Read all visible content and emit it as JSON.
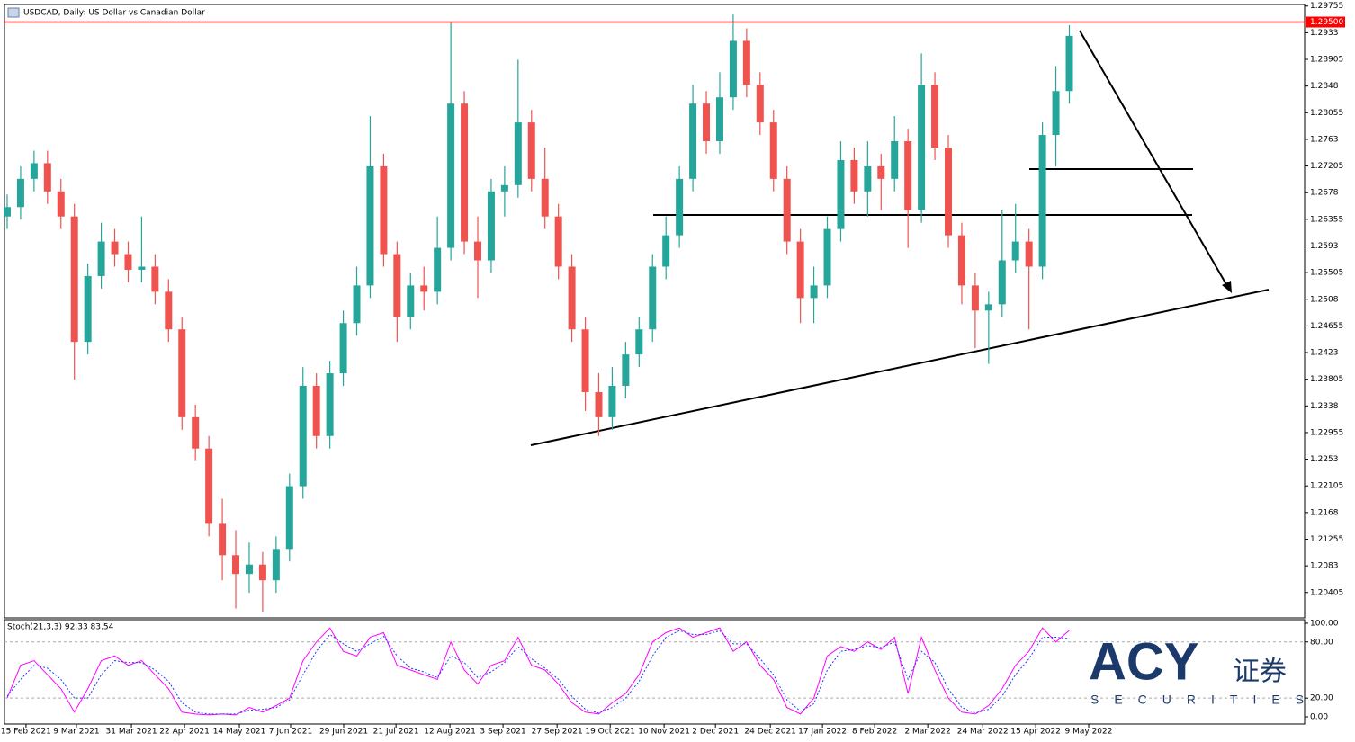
{
  "chart_data": [
    {
      "type": "candlestick",
      "title": "USDCAD, Daily:  US Dollar vs Canadian Dollar",
      "up_color": "#26a69a",
      "down_color": "#ef5350",
      "xlim": [
        -0.2,
        96.5
      ],
      "xticks": [
        {
          "value": 1.4,
          "label": "15 Feb 2021"
        },
        {
          "value": 5.15,
          "label": "9 Mar 2021"
        },
        {
          "value": 9.24,
          "label": "31 Mar 2021"
        },
        {
          "value": 13.19,
          "label": "22 Apr 2021"
        },
        {
          "value": 17.27,
          "label": "14 May 2021"
        },
        {
          "value": 21.08,
          "label": "7 Jun 2021"
        },
        {
          "value": 25.03,
          "label": "29 Jun 2021"
        },
        {
          "value": 28.92,
          "label": "21 Jul 2021"
        },
        {
          "value": 32.93,
          "label": "12 Aug 2021"
        },
        {
          "value": 36.88,
          "label": "3 Sep 2021"
        },
        {
          "value": 40.9,
          "label": "27 Sep 2021"
        },
        {
          "value": 44.85,
          "label": "19 Oct 2021"
        },
        {
          "value": 48.86,
          "label": "10 Nov 2021"
        },
        {
          "value": 52.68,
          "label": "2 Dec 2021"
        },
        {
          "value": 56.76,
          "label": "24 Dec 2021"
        },
        {
          "value": 60.64,
          "label": "17 Jan 2022"
        },
        {
          "value": 64.52,
          "label": "8 Feb 2022"
        },
        {
          "value": 68.47,
          "label": "2 Mar 2022"
        },
        {
          "value": 72.56,
          "label": "24 Mar 2022"
        },
        {
          "value": 76.5,
          "label": "15 Apr 2022"
        },
        {
          "value": 80.44,
          "label": "9 May 2022"
        }
      ],
      "ylim": [
        1.2,
        1.2978
      ],
      "yticks": [
        1.29755,
        1.2933,
        1.28905,
        1.2848,
        1.28055,
        1.2763,
        1.27205,
        1.2678,
        1.26355,
        1.2593,
        1.25505,
        1.2508,
        1.24655,
        1.2423,
        1.23805,
        1.2338,
        1.22955,
        1.2253,
        1.22105,
        1.2168,
        1.21255,
        1.2083,
        1.20405
      ],
      "level": {
        "value": 1.295,
        "label": "1.29500",
        "color": "#ff0000"
      },
      "open": [
        1.264,
        1.2655,
        1.27,
        1.2725,
        1.268,
        1.264,
        1.244,
        1.2545,
        1.26,
        1.258,
        1.2555,
        1.256,
        1.252,
        1.246,
        1.232,
        1.227,
        1.215,
        1.21,
        1.207,
        1.2085,
        1.206,
        1.211,
        1.221,
        1.237,
        1.229,
        1.239,
        1.247,
        1.253,
        1.272,
        1.258,
        1.248,
        1.253,
        1.252,
        1.259,
        1.282,
        1.26,
        1.257,
        1.268,
        1.269,
        1.279,
        1.27,
        1.264,
        1.256,
        1.246,
        1.236,
        1.232,
        1.237,
        1.242,
        1.246,
        1.256,
        1.261,
        1.27,
        1.282,
        1.276,
        1.283,
        1.292,
        1.285,
        1.279,
        1.27,
        1.26,
        1.251,
        1.253,
        1.262,
        1.273,
        1.268,
        1.272,
        1.27,
        1.276,
        1.265,
        1.285,
        1.275,
        1.261,
        1.253,
        1.249,
        1.25,
        1.257,
        1.26,
        1.256,
        1.277,
        1.284
      ],
      "high": [
        1.2675,
        1.272,
        1.2745,
        1.2745,
        1.27,
        1.266,
        1.2565,
        1.263,
        1.262,
        1.26,
        1.264,
        1.258,
        1.254,
        1.248,
        1.234,
        1.229,
        1.219,
        1.214,
        1.212,
        1.2105,
        1.213,
        1.223,
        1.24,
        1.239,
        1.241,
        1.249,
        1.256,
        1.28,
        1.274,
        1.26,
        1.255,
        1.256,
        1.264,
        1.295,
        1.284,
        1.264,
        1.27,
        1.272,
        1.289,
        1.281,
        1.275,
        1.266,
        1.258,
        1.248,
        1.239,
        1.24,
        1.244,
        1.248,
        1.258,
        1.264,
        1.272,
        1.285,
        1.284,
        1.287,
        1.2962,
        1.294,
        1.287,
        1.281,
        1.272,
        1.262,
        1.256,
        1.264,
        1.276,
        1.275,
        1.276,
        1.274,
        1.28,
        1.278,
        1.29,
        1.287,
        1.277,
        1.263,
        1.255,
        1.252,
        1.265,
        1.266,
        1.262,
        1.279,
        1.288,
        1.2945
      ],
      "low": [
        1.262,
        1.2635,
        1.268,
        1.266,
        1.262,
        1.238,
        1.242,
        1.2525,
        1.256,
        1.2535,
        1.2535,
        1.25,
        1.244,
        1.23,
        1.225,
        1.213,
        1.206,
        1.2015,
        1.204,
        1.201,
        1.204,
        1.209,
        1.219,
        1.227,
        1.227,
        1.237,
        1.245,
        1.251,
        1.256,
        1.244,
        1.246,
        1.249,
        1.25,
        1.257,
        1.258,
        1.251,
        1.255,
        1.264,
        1.267,
        1.268,
        1.262,
        1.254,
        1.244,
        1.233,
        1.229,
        1.23,
        1.235,
        1.24,
        1.244,
        1.254,
        1.259,
        1.268,
        1.274,
        1.274,
        1.281,
        1.283,
        1.277,
        1.268,
        1.258,
        1.247,
        1.247,
        1.251,
        1.26,
        1.266,
        1.264,
        1.265,
        1.268,
        1.259,
        1.263,
        1.273,
        1.259,
        1.25,
        1.243,
        1.2405,
        1.248,
        1.255,
        1.246,
        1.254,
        1.272,
        1.282
      ],
      "close": [
        1.2655,
        1.27,
        1.2725,
        1.268,
        1.264,
        1.244,
        1.2545,
        1.26,
        1.258,
        1.2555,
        1.256,
        1.252,
        1.246,
        1.232,
        1.227,
        1.215,
        1.21,
        1.207,
        1.2085,
        1.206,
        1.211,
        1.221,
        1.237,
        1.229,
        1.239,
        1.247,
        1.253,
        1.272,
        1.258,
        1.248,
        1.253,
        1.252,
        1.259,
        1.282,
        1.26,
        1.257,
        1.268,
        1.269,
        1.279,
        1.27,
        1.264,
        1.256,
        1.246,
        1.236,
        1.232,
        1.237,
        1.242,
        1.246,
        1.256,
        1.261,
        1.27,
        1.282,
        1.276,
        1.283,
        1.292,
        1.285,
        1.279,
        1.27,
        1.26,
        1.251,
        1.253,
        1.262,
        1.273,
        1.268,
        1.272,
        1.27,
        1.276,
        1.265,
        1.285,
        1.275,
        1.261,
        1.253,
        1.249,
        1.25,
        1.257,
        1.26,
        1.256,
        1.277,
        1.284,
        1.2928
      ]
    },
    {
      "type": "line",
      "title": "Stoch(21,3,3) 92.33 83.54",
      "xlim": [
        -0.2,
        96.5
      ],
      "ylim": [
        -7.7,
        103.8
      ],
      "yticks": [
        {
          "value": 100,
          "label": "100.00"
        },
        {
          "value": 80,
          "label": "80.00"
        },
        {
          "value": 20,
          "label": "20.00"
        },
        {
          "value": 0,
          "label": "0.00"
        }
      ],
      "levels": [
        80,
        20
      ],
      "series": [
        {
          "color": "#ff00ff",
          "dashed": false,
          "values": [
            20,
            55,
            60,
            45,
            30,
            5,
            30,
            60,
            65,
            55,
            60,
            45,
            30,
            5,
            3,
            2,
            3,
            2,
            10,
            5,
            12,
            20,
            60,
            80,
            95,
            70,
            65,
            85,
            90,
            55,
            50,
            45,
            40,
            80,
            50,
            35,
            55,
            60,
            85,
            55,
            50,
            35,
            15,
            5,
            3,
            15,
            25,
            45,
            80,
            90,
            95,
            85,
            90,
            95,
            70,
            80,
            55,
            40,
            10,
            3,
            20,
            65,
            75,
            70,
            80,
            72,
            85,
            25,
            85,
            50,
            20,
            5,
            3,
            12,
            30,
            55,
            70,
            95,
            80,
            92.33
          ]
        },
        {
          "color": "#1e3cff",
          "dashed": true,
          "values": [
            22,
            40,
            55,
            52,
            40,
            20,
            20,
            45,
            60,
            58,
            58,
            50,
            38,
            15,
            5,
            3,
            3,
            3,
            7,
            8,
            10,
            18,
            45,
            70,
            88,
            78,
            70,
            78,
            86,
            65,
            52,
            48,
            42,
            65,
            58,
            42,
            48,
            58,
            75,
            62,
            52,
            40,
            22,
            8,
            4,
            10,
            20,
            38,
            65,
            85,
            92,
            88,
            88,
            92,
            78,
            78,
            62,
            45,
            18,
            6,
            14,
            50,
            70,
            72,
            76,
            74,
            80,
            40,
            70,
            58,
            30,
            10,
            4,
            8,
            22,
            45,
            62,
            85,
            85,
            83.54
          ]
        }
      ]
    }
  ],
  "logo": {
    "brand": "ACY",
    "chinese": "证券",
    "tagline": "SECURITIES"
  }
}
